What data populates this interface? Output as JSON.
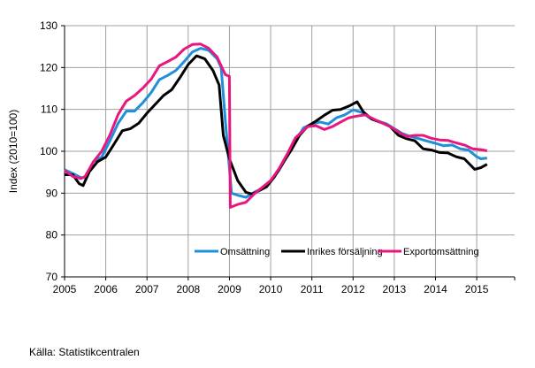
{
  "chart_data": {
    "type": "line",
    "title": "",
    "xlabel": "",
    "ylabel": "Index (2010=100)",
    "xlim": [
      2005,
      2015.92
    ],
    "ylim": [
      70,
      130
    ],
    "x_ticks": [
      "2005",
      "2006",
      "2007",
      "2008",
      "2009",
      "2010",
      "2011",
      "2012",
      "2013",
      "2014",
      "2015"
    ],
    "y_ticks": [
      "70",
      "80",
      "90",
      "100",
      "110",
      "120",
      "130"
    ],
    "grid": true,
    "legend_position": "bottom-right",
    "series": [
      {
        "name": "Omsättning",
        "color": "#1f8fdc",
        "x": [
          2005.0,
          2005.2,
          2005.4,
          2005.5,
          2005.7,
          2005.9,
          2006.1,
          2006.3,
          2006.5,
          2006.7,
          2006.9,
          2007.1,
          2007.3,
          2007.5,
          2007.7,
          2007.9,
          2008.1,
          2008.3,
          2008.5,
          2008.7,
          2008.8,
          2008.9,
          2009.05,
          2009.2,
          2009.4,
          2009.6,
          2009.8,
          2010.0,
          2010.2,
          2010.4,
          2010.5,
          2010.6,
          2010.8,
          2011.0,
          2011.2,
          2011.4,
          2011.6,
          2011.8,
          2012.0,
          2012.2,
          2012.4,
          2012.6,
          2012.8,
          2013.0,
          2013.2,
          2013.4,
          2013.6,
          2013.8,
          2014.0,
          2014.2,
          2014.4,
          2014.6,
          2014.8,
          2015.0,
          2015.1,
          2015.25
        ],
        "y": [
          95.6,
          94.7,
          93.7,
          93.7,
          97.5,
          98.6,
          102.5,
          106.7,
          109.6,
          109.6,
          111.6,
          114,
          117.1,
          118.1,
          119.3,
          121.4,
          123.7,
          124.6,
          124.1,
          122.1,
          120,
          107.4,
          90,
          89.5,
          89,
          90.2,
          91.2,
          93,
          95.4,
          98.9,
          100.3,
          102.5,
          105.6,
          106.5,
          107,
          106.5,
          108,
          108.7,
          109.9,
          109.3,
          108,
          107.2,
          106.6,
          105.4,
          104.2,
          103.5,
          103,
          102.4,
          101.9,
          101.3,
          101.5,
          100.6,
          100.3,
          98.7,
          98.2,
          98.4
        ]
      },
      {
        "name": "Inrikes försäljning",
        "color": "#000000",
        "x": [
          2005.0,
          2005.2,
          2005.35,
          2005.45,
          2005.6,
          2005.8,
          2006.0,
          2006.2,
          2006.4,
          2006.6,
          2006.8,
          2007.0,
          2007.2,
          2007.4,
          2007.6,
          2007.8,
          2008.0,
          2008.2,
          2008.4,
          2008.6,
          2008.75,
          2008.85,
          2009.0,
          2009.2,
          2009.4,
          2009.55,
          2009.7,
          2009.9,
          2010.1,
          2010.3,
          2010.5,
          2010.7,
          2010.9,
          2011.1,
          2011.3,
          2011.5,
          2011.7,
          2011.9,
          2012.1,
          2012.25,
          2012.45,
          2012.7,
          2012.9,
          2013.1,
          2013.3,
          2013.5,
          2013.7,
          2013.9,
          2014.1,
          2014.3,
          2014.5,
          2014.7,
          2014.95,
          2015.1,
          2015.25
        ],
        "y": [
          94.4,
          94.4,
          92.3,
          91.8,
          95.1,
          97.5,
          98.6,
          101.7,
          104.9,
          105.4,
          106.7,
          109.1,
          111.2,
          113.3,
          114.7,
          117.6,
          120.7,
          122.8,
          122.1,
          119.3,
          115.8,
          103.8,
          98.2,
          93,
          90.2,
          89.8,
          90.5,
          91.5,
          94,
          97.2,
          100.3,
          103.8,
          106,
          107.2,
          108.6,
          109.8,
          110,
          110.8,
          111.8,
          109.4,
          107.7,
          106.8,
          105.9,
          103.8,
          103,
          102.5,
          100.6,
          100.3,
          99.7,
          99.6,
          98.7,
          98.2,
          95.7,
          96.1,
          96.9
        ]
      },
      {
        "name": "Exportomsättning",
        "color": "#e8177d",
        "x": [
          2005.0,
          2005.2,
          2005.4,
          2005.5,
          2005.7,
          2005.9,
          2006.1,
          2006.3,
          2006.5,
          2006.7,
          2006.9,
          2007.1,
          2007.3,
          2007.5,
          2007.7,
          2007.9,
          2008.1,
          2008.3,
          2008.5,
          2008.7,
          2008.9,
          2009.0,
          2009.02,
          2009.2,
          2009.4,
          2009.6,
          2009.8,
          2010.0,
          2010.2,
          2010.4,
          2010.6,
          2010.9,
          2011.1,
          2011.3,
          2011.5,
          2011.7,
          2011.9,
          2012.1,
          2012.3,
          2012.5,
          2012.7,
          2012.9,
          2013.1,
          2013.3,
          2013.5,
          2013.7,
          2013.9,
          2014.1,
          2014.3,
          2014.5,
          2014.7,
          2014.9,
          2015.1,
          2015.25
        ],
        "y": [
          95.4,
          94,
          93.5,
          94,
          97.5,
          100,
          103.9,
          108.8,
          112,
          113.3,
          115.1,
          117.2,
          120.4,
          121.4,
          122.5,
          124.4,
          125.5,
          125.6,
          124.6,
          122.5,
          118.3,
          117.9,
          86.6,
          87.3,
          87.8,
          89.8,
          91.4,
          93,
          95.8,
          99.3,
          103.2,
          105.9,
          106.1,
          105.2,
          105.9,
          107,
          108,
          108.4,
          108.7,
          107.7,
          106.8,
          105.9,
          104.6,
          103.5,
          103.8,
          103.8,
          103.1,
          102.7,
          102.6,
          102,
          101.5,
          100.6,
          100.4,
          100.1
        ]
      }
    ]
  },
  "source": "Källa: Statistikcentralen"
}
